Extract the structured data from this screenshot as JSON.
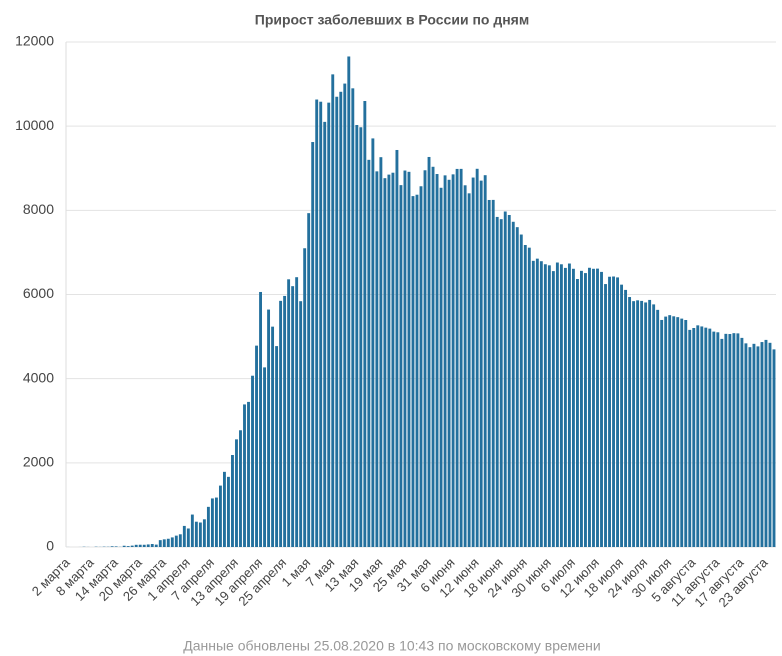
{
  "chart_data": {
    "type": "bar",
    "title": "Прирост заболевших в России по дням",
    "subtitle": "Данные обновлены 25.08.2020 в 10:43 по московскому времени",
    "color": "#23709d",
    "grid": true,
    "ylim": [
      0,
      12000
    ],
    "yticks": [
      0,
      2000,
      4000,
      6000,
      8000,
      10000,
      12000
    ],
    "categories": [
      "2 марта",
      null,
      null,
      null,
      null,
      null,
      "8 марта",
      null,
      null,
      null,
      null,
      null,
      "14 марта",
      null,
      null,
      null,
      null,
      null,
      "20 марта",
      null,
      null,
      null,
      null,
      null,
      "26 марта",
      null,
      null,
      null,
      null,
      null,
      "1 апреля",
      null,
      null,
      null,
      null,
      null,
      "7 апреля",
      null,
      null,
      null,
      null,
      null,
      "13 апреля",
      null,
      null,
      null,
      null,
      null,
      "19 апреля",
      null,
      null,
      null,
      null,
      null,
      "25 апреля",
      null,
      null,
      null,
      null,
      null,
      "1 мая",
      null,
      null,
      null,
      null,
      null,
      "7 мая",
      null,
      null,
      null,
      null,
      null,
      "13 мая",
      null,
      null,
      null,
      null,
      null,
      "19 мая",
      null,
      null,
      null,
      null,
      null,
      "25 мая",
      null,
      null,
      null,
      null,
      null,
      "31 мая",
      null,
      null,
      null,
      null,
      null,
      "6 июня",
      null,
      null,
      null,
      null,
      null,
      "12 июня",
      null,
      null,
      null,
      null,
      null,
      "18 июня",
      null,
      null,
      null,
      null,
      null,
      "24 июня",
      null,
      null,
      null,
      null,
      null,
      "30 июня",
      null,
      null,
      null,
      null,
      null,
      "6 июля",
      null,
      null,
      null,
      null,
      null,
      "12 июля",
      null,
      null,
      null,
      null,
      null,
      "18 июля",
      null,
      null,
      null,
      null,
      null,
      "24 июля",
      null,
      null,
      null,
      null,
      null,
      "30 июля",
      null,
      null,
      null,
      null,
      null,
      "5 августа",
      null,
      null,
      null,
      null,
      null,
      "11 августа",
      null,
      null,
      null,
      null,
      null,
      "17 августа",
      null,
      null,
      null,
      null,
      null,
      "23 августа",
      null,
      null
    ],
    "values": [
      1,
      0,
      0,
      1,
      6,
      2,
      0,
      7,
      3,
      8,
      6,
      17,
      14,
      4,
      30,
      21,
      33,
      52,
      54,
      53,
      61,
      71,
      57,
      163,
      182,
      196,
      228,
      270,
      302,
      501,
      440,
      771,
      601,
      582,
      658,
      954,
      1154,
      1175,
      1459,
      1786,
      1667,
      2186,
      2558,
      2774,
      3388,
      3448,
      4070,
      4785,
      6060,
      4268,
      5642,
      5236,
      4774,
      5849,
      5966,
      6361,
      6198,
      6411,
      5841,
      7099,
      7933,
      9623,
      10633,
      10581,
      10102,
      10559,
      11231,
      10699,
      10817,
      11012,
      11656,
      10899,
      10028,
      9974,
      10598,
      9200,
      9709,
      8926,
      9263,
      8764,
      8849,
      8894,
      9434,
      8599,
      8946,
      8915,
      8338,
      8371,
      8572,
      8952,
      9268,
      9035,
      8863,
      8536,
      8831,
      8726,
      8855,
      8984,
      8985,
      8595,
      8404,
      8779,
      8987,
      8706,
      8835,
      8246,
      8248,
      7843,
      7790,
      7972,
      7889,
      7728,
      7600,
      7425,
      7176,
      7113,
      6800,
      6852,
      6791,
      6719,
      6693,
      6556,
      6760,
      6718,
      6632,
      6736,
      6611,
      6368,
      6562,
      6509,
      6635,
      6611,
      6615,
      6537,
      6248,
      6422,
      6428,
      6406,
      6234,
      6109,
      5940,
      5842,
      5862,
      5848,
      5811,
      5871,
      5765,
      5635,
      5395,
      5475,
      5509,
      5482,
      5462,
      5427,
      5394,
      5159,
      5204,
      5267,
      5241,
      5212,
      5189,
      5118,
      5102,
      4945,
      5065,
      5061,
      5081,
      5076,
      4969,
      4839,
      4748,
      4828,
      4767,
      4870,
      4921,
      4852,
      4696
    ]
  }
}
